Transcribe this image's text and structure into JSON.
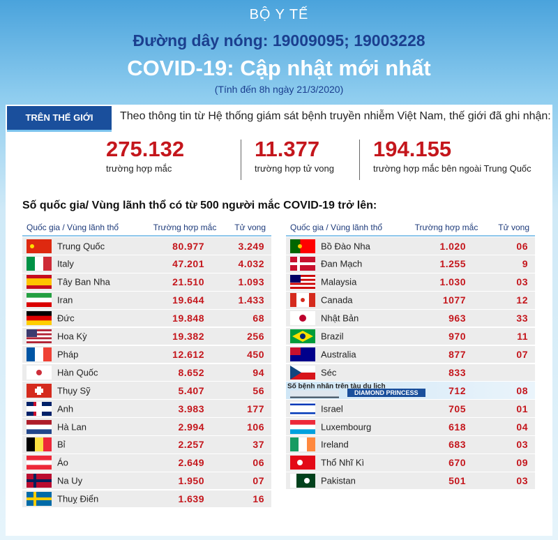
{
  "header": {
    "org": "BỘ Y TẾ",
    "hotline": "Đường dây nóng: 19009095; 19003228",
    "title": "COVID-19: Cập nhật mới nhất",
    "subtitle": "(Tính đến 8h ngày 21/3/2020)"
  },
  "world": {
    "tab": "TRÊN THẾ GIỚI",
    "intro": "Theo thông tin từ Hệ thống giám sát bệnh truyền nhiễm Việt Nam, thế giới đã ghi nhận:",
    "stats": [
      {
        "value": "275.132",
        "label": "trường hợp mắc"
      },
      {
        "value": "11.377",
        "label": "trường hợp tử vong"
      },
      {
        "value": "194.155",
        "label": "trường hợp  mắc bên ngoài Trung Quốc"
      }
    ]
  },
  "tables": {
    "heading": "Số quốc gia/ Vùng lãnh thổ có từ 500 người  mắc COVID-19 trở lên:",
    "left": {
      "columns": [
        "Quốc gia / Vùng lãnh thổ",
        "Trường hợp mắc",
        "Tử vong"
      ],
      "rows": [
        {
          "country": "Trung Quốc",
          "cases": "80.977",
          "deaths": "3.249"
        },
        {
          "country": "Italy",
          "cases": "47.201",
          "deaths": "4.032"
        },
        {
          "country": "Tây Ban Nha",
          "cases": "21.510",
          "deaths": "1.093"
        },
        {
          "country": "Iran",
          "cases": "19.644",
          "deaths": "1.433"
        },
        {
          "country": "Đức",
          "cases": "19.848",
          "deaths": "68"
        },
        {
          "country": "Hoa Kỳ",
          "cases": "19.382",
          "deaths": "256"
        },
        {
          "country": "Pháp",
          "cases": "12.612",
          "deaths": "450"
        },
        {
          "country": "Hàn Quốc",
          "cases": "8.652",
          "deaths": "94"
        },
        {
          "country": "Thụy Sỹ",
          "cases": "5.407",
          "deaths": "56"
        },
        {
          "country": "Anh",
          "cases": "3.983",
          "deaths": "177"
        },
        {
          "country": "Hà Lan",
          "cases": "2.994",
          "deaths": "106"
        },
        {
          "country": "Bỉ",
          "cases": "2.257",
          "deaths": "37"
        },
        {
          "country": "Áo",
          "cases": "2.649",
          "deaths": "06"
        },
        {
          "country": "Na Uy",
          "cases": "1.950",
          "deaths": "07"
        },
        {
          "country": "Thuỵ Điển",
          "cases": "1.639",
          "deaths": "16"
        }
      ]
    },
    "right": {
      "columns": [
        "Quốc gia / Vùng lãnh thổ",
        "Trường hợp mắc",
        "Tử vong"
      ],
      "rows": [
        {
          "country": "Bồ Đào Nha",
          "cases": "1.020",
          "deaths": "06"
        },
        {
          "country": "Đan Mạch",
          "cases": "1.255",
          "deaths": "9"
        },
        {
          "country": "Malaysia",
          "cases": "1.030",
          "deaths": "03"
        },
        {
          "country": "Canada",
          "cases": "1077",
          "deaths": "12"
        },
        {
          "country": "Nhật Bản",
          "cases": "963",
          "deaths": "33"
        },
        {
          "country": "Brazil",
          "cases": "970",
          "deaths": "11"
        },
        {
          "country": "Australia",
          "cases": "877",
          "deaths": "07"
        },
        {
          "country": "Séc",
          "cases": "833"
        },
        {
          "country": "Số bệnh nhân trên tàu du lịch",
          "ship": "DIAMOND PRINCESS",
          "cases": "712",
          "deaths": "08"
        },
        {
          "country": "Israel",
          "cases": "705",
          "deaths": "01"
        },
        {
          "country": "Luxembourg",
          "cases": "618",
          "deaths": "04"
        },
        {
          "country": "Ireland",
          "cases": "683",
          "deaths": "03"
        },
        {
          "country": "Thổ Nhĩ Kì",
          "cases": "670",
          "deaths": "09"
        },
        {
          "country": "Pakistan",
          "cases": "501",
          "deaths": "03"
        }
      ]
    }
  }
}
